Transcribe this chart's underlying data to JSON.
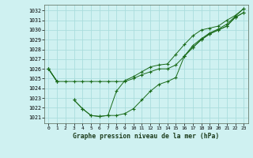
{
  "title": "Graphe pression niveau de la mer (hPa)",
  "bg_color": "#cff1f1",
  "grid_color": "#aadddd",
  "line_color": "#1a6b1a",
  "ylim": [
    1020.4,
    1032.6
  ],
  "yticks": [
    1021,
    1022,
    1023,
    1024,
    1025,
    1026,
    1027,
    1028,
    1029,
    1030,
    1031,
    1032
  ],
  "xlim": [
    -0.5,
    23.5
  ],
  "series": [
    [
      1026.0,
      1024.7,
      1024.7,
      1024.7,
      1024.7,
      1024.7,
      1024.7,
      1024.7,
      1024.7,
      1024.7,
      1025.0,
      1025.4,
      1025.7,
      1026.0,
      1026.0,
      1026.4,
      1027.3,
      1028.2,
      1029.0,
      1029.6,
      1030.0,
      1030.4,
      1031.3,
      1031.8
    ],
    [
      1026.0,
      1024.7,
      null,
      null,
      null,
      null,
      null,
      null,
      null,
      null,
      null,
      null,
      null,
      null,
      null,
      null,
      1027.3,
      1028.2,
      1029.0,
      1029.6,
      1030.0,
      1030.4,
      1031.3,
      1031.8
    ],
    [
      1026.0,
      1024.7,
      null,
      1022.8,
      1021.9,
      1021.2,
      1021.1,
      1021.2,
      1021.2,
      1021.4,
      1021.9,
      1022.8,
      1023.7,
      1024.4,
      1024.7,
      1025.1,
      1027.3,
      1028.4,
      1029.1,
      1029.7,
      1030.1,
      1030.6,
      1031.4,
      1032.2
    ],
    [
      1026.0,
      1024.7,
      null,
      1022.8,
      1021.9,
      1021.2,
      1021.1,
      1021.2,
      1023.7,
      1024.8,
      1025.2,
      1025.7,
      1026.2,
      1026.4,
      1026.5,
      1027.5,
      1028.5,
      1029.4,
      1030.0,
      1030.2,
      1030.4,
      1031.0,
      1031.5,
      1032.2
    ]
  ]
}
